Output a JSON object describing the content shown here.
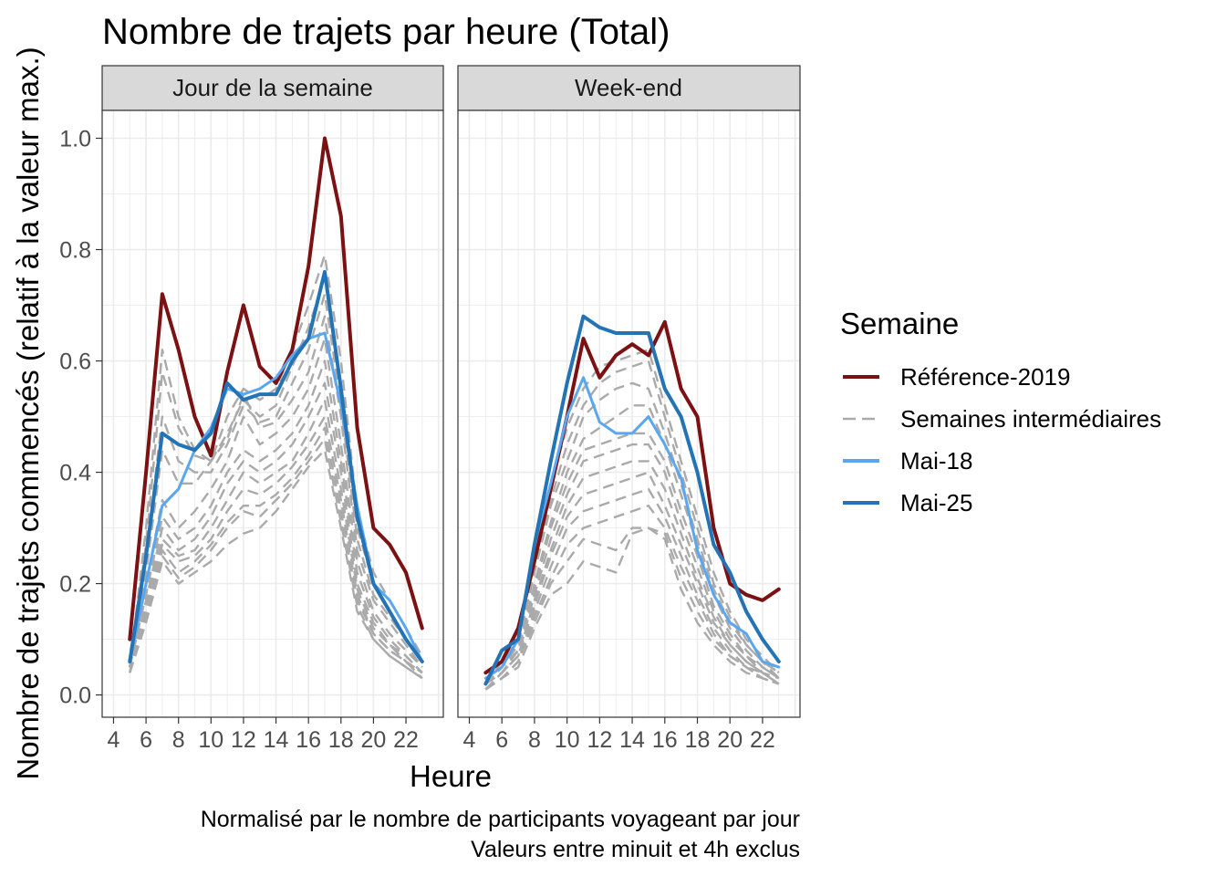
{
  "chart_data": {
    "type": "line",
    "title": "Nombre de trajets par heure (Total)",
    "xlabel": "Heure",
    "ylabel": "Nombre de trajets commencés (relatif à la valeur max.)",
    "caption_lines": [
      "Normalisé par le nombre de participants voyageant par jour",
      "Valeurs entre minuit et 4h exclus"
    ],
    "xlim": [
      3.3,
      24.3
    ],
    "ylim": [
      -0.04,
      1.05
    ],
    "x_ticks": [
      4,
      6,
      8,
      10,
      12,
      14,
      16,
      18,
      20,
      22
    ],
    "x_tick_labels": [
      "4",
      "6",
      "8",
      "10",
      "12",
      "14",
      "16",
      "18",
      "20",
      "22"
    ],
    "y_ticks": [
      0.0,
      0.2,
      0.4,
      0.6,
      0.8,
      1.0
    ],
    "y_tick_labels": [
      "0.0",
      "0.2",
      "0.4",
      "0.6",
      "0.8",
      "1.0"
    ],
    "grid": true,
    "legend": {
      "title": "Semaine",
      "position": "right",
      "entries": [
        {
          "label": "Référence-2019",
          "color": "#7b1113",
          "dash": "solid"
        },
        {
          "label": "Semaines intermédiaires",
          "color": "#aaaaaa",
          "dash": "dashed"
        },
        {
          "label": "Mai-18",
          "color": "#5aa7f0",
          "dash": "solid"
        },
        {
          "label": "Mai-25",
          "color": "#2474b5",
          "dash": "solid"
        }
      ]
    },
    "x": [
      5,
      6,
      7,
      8,
      9,
      10,
      11,
      12,
      13,
      14,
      15,
      16,
      17,
      18,
      19,
      20,
      21,
      22,
      23
    ],
    "panels": [
      {
        "label": "Jour de la semaine",
        "intermediate_series": [
          [
            0.05,
            0.3,
            0.62,
            0.5,
            0.44,
            0.42,
            0.5,
            0.55,
            0.53,
            0.55,
            0.62,
            0.7,
            0.79,
            0.6,
            0.33,
            0.22,
            0.17,
            0.12,
            0.07
          ],
          [
            0.06,
            0.27,
            0.58,
            0.48,
            0.43,
            0.42,
            0.47,
            0.53,
            0.5,
            0.52,
            0.59,
            0.66,
            0.75,
            0.56,
            0.3,
            0.2,
            0.15,
            0.1,
            0.06
          ],
          [
            0.05,
            0.25,
            0.5,
            0.42,
            0.4,
            0.4,
            0.45,
            0.52,
            0.49,
            0.5,
            0.56,
            0.62,
            0.72,
            0.52,
            0.28,
            0.18,
            0.14,
            0.1,
            0.06
          ],
          [
            0.05,
            0.22,
            0.44,
            0.38,
            0.38,
            0.42,
            0.46,
            0.54,
            0.48,
            0.49,
            0.53,
            0.58,
            0.68,
            0.5,
            0.26,
            0.17,
            0.13,
            0.09,
            0.05
          ],
          [
            0.04,
            0.2,
            0.35,
            0.3,
            0.33,
            0.37,
            0.42,
            0.5,
            0.45,
            0.47,
            0.5,
            0.55,
            0.64,
            0.45,
            0.24,
            0.15,
            0.11,
            0.08,
            0.05
          ],
          [
            0.05,
            0.18,
            0.32,
            0.28,
            0.3,
            0.34,
            0.4,
            0.44,
            0.42,
            0.44,
            0.47,
            0.52,
            0.6,
            0.42,
            0.22,
            0.14,
            0.1,
            0.07,
            0.04
          ],
          [
            0.04,
            0.17,
            0.3,
            0.26,
            0.28,
            0.32,
            0.38,
            0.42,
            0.4,
            0.42,
            0.45,
            0.5,
            0.56,
            0.4,
            0.2,
            0.13,
            0.09,
            0.07,
            0.04
          ],
          [
            0.04,
            0.16,
            0.28,
            0.25,
            0.26,
            0.3,
            0.35,
            0.4,
            0.38,
            0.4,
            0.42,
            0.47,
            0.53,
            0.37,
            0.19,
            0.12,
            0.09,
            0.06,
            0.04
          ],
          [
            0.04,
            0.15,
            0.27,
            0.24,
            0.25,
            0.28,
            0.33,
            0.37,
            0.36,
            0.38,
            0.41,
            0.45,
            0.5,
            0.35,
            0.18,
            0.11,
            0.08,
            0.06,
            0.04
          ],
          [
            0.04,
            0.14,
            0.26,
            0.22,
            0.24,
            0.27,
            0.31,
            0.34,
            0.34,
            0.36,
            0.39,
            0.43,
            0.48,
            0.33,
            0.17,
            0.11,
            0.08,
            0.06,
            0.03
          ],
          [
            0.04,
            0.14,
            0.25,
            0.21,
            0.23,
            0.26,
            0.3,
            0.33,
            0.32,
            0.35,
            0.38,
            0.42,
            0.46,
            0.31,
            0.16,
            0.1,
            0.07,
            0.05,
            0.03
          ],
          [
            0.04,
            0.13,
            0.24,
            0.2,
            0.22,
            0.24,
            0.27,
            0.29,
            0.3,
            0.33,
            0.37,
            0.41,
            0.44,
            0.3,
            0.15,
            0.1,
            0.07,
            0.05,
            0.03
          ]
        ],
        "series": [
          {
            "name": "Référence-2019",
            "values": [
              0.1,
              0.4,
              0.72,
              0.62,
              0.5,
              0.43,
              0.58,
              0.7,
              0.59,
              0.56,
              0.62,
              0.77,
              1.0,
              0.86,
              0.48,
              0.3,
              0.27,
              0.22,
              0.12
            ]
          },
          {
            "name": "Mai-18",
            "values": [
              0.06,
              0.2,
              0.34,
              0.37,
              0.44,
              0.48,
              0.55,
              0.54,
              0.55,
              0.57,
              0.61,
              0.64,
              0.65,
              0.52,
              0.34,
              0.2,
              0.17,
              0.12,
              0.06
            ]
          },
          {
            "name": "Mai-25",
            "values": [
              0.06,
              0.25,
              0.47,
              0.45,
              0.44,
              0.47,
              0.56,
              0.53,
              0.54,
              0.54,
              0.6,
              0.64,
              0.76,
              0.55,
              0.32,
              0.2,
              0.15,
              0.1,
              0.06
            ]
          }
        ]
      },
      {
        "label": "Week-end",
        "intermediate_series": [
          [
            0.02,
            0.06,
            0.1,
            0.25,
            0.38,
            0.48,
            0.55,
            0.59,
            0.6,
            0.61,
            0.62,
            0.52,
            0.42,
            0.32,
            0.22,
            0.15,
            0.1,
            0.07,
            0.04
          ],
          [
            0.02,
            0.05,
            0.09,
            0.23,
            0.35,
            0.45,
            0.52,
            0.56,
            0.58,
            0.59,
            0.6,
            0.5,
            0.4,
            0.3,
            0.2,
            0.14,
            0.09,
            0.06,
            0.04
          ],
          [
            0.02,
            0.05,
            0.09,
            0.22,
            0.34,
            0.42,
            0.5,
            0.53,
            0.55,
            0.56,
            0.55,
            0.47,
            0.38,
            0.28,
            0.19,
            0.13,
            0.09,
            0.06,
            0.03
          ],
          [
            0.02,
            0.05,
            0.08,
            0.2,
            0.31,
            0.4,
            0.46,
            0.48,
            0.5,
            0.52,
            0.52,
            0.45,
            0.36,
            0.27,
            0.18,
            0.12,
            0.08,
            0.05,
            0.03
          ],
          [
            0.02,
            0.04,
            0.08,
            0.19,
            0.3,
            0.38,
            0.44,
            0.45,
            0.46,
            0.47,
            0.47,
            0.42,
            0.33,
            0.25,
            0.16,
            0.11,
            0.07,
            0.05,
            0.03
          ],
          [
            0.02,
            0.04,
            0.07,
            0.18,
            0.28,
            0.36,
            0.42,
            0.43,
            0.44,
            0.45,
            0.45,
            0.4,
            0.31,
            0.23,
            0.15,
            0.1,
            0.07,
            0.04,
            0.03
          ],
          [
            0.01,
            0.04,
            0.07,
            0.17,
            0.26,
            0.34,
            0.39,
            0.4,
            0.41,
            0.42,
            0.42,
            0.37,
            0.29,
            0.21,
            0.14,
            0.09,
            0.06,
            0.04,
            0.02
          ],
          [
            0.01,
            0.04,
            0.07,
            0.16,
            0.25,
            0.32,
            0.36,
            0.37,
            0.38,
            0.39,
            0.4,
            0.34,
            0.27,
            0.2,
            0.13,
            0.09,
            0.06,
            0.04,
            0.02
          ],
          [
            0.01,
            0.03,
            0.06,
            0.15,
            0.23,
            0.3,
            0.33,
            0.34,
            0.35,
            0.36,
            0.37,
            0.32,
            0.25,
            0.18,
            0.12,
            0.08,
            0.05,
            0.04,
            0.02
          ],
          [
            0.01,
            0.03,
            0.06,
            0.14,
            0.21,
            0.27,
            0.3,
            0.31,
            0.32,
            0.33,
            0.34,
            0.3,
            0.23,
            0.17,
            0.11,
            0.07,
            0.05,
            0.03,
            0.02
          ],
          [
            0.01,
            0.03,
            0.06,
            0.13,
            0.2,
            0.24,
            0.28,
            0.27,
            0.26,
            0.3,
            0.3,
            0.29,
            0.21,
            0.15,
            0.1,
            0.07,
            0.05,
            0.03,
            0.02
          ],
          [
            0.01,
            0.03,
            0.05,
            0.12,
            0.18,
            0.2,
            0.24,
            0.23,
            0.22,
            0.29,
            0.3,
            0.28,
            0.19,
            0.13,
            0.09,
            0.06,
            0.04,
            0.03,
            0.02
          ]
        ],
        "series": [
          {
            "name": "Référence-2019",
            "values": [
              0.04,
              0.06,
              0.12,
              0.24,
              0.37,
              0.5,
              0.64,
              0.57,
              0.61,
              0.63,
              0.61,
              0.67,
              0.55,
              0.5,
              0.3,
              0.2,
              0.18,
              0.17,
              0.19
            ]
          },
          {
            "name": "Mai-18",
            "values": [
              0.03,
              0.05,
              0.1,
              0.27,
              0.38,
              0.5,
              0.57,
              0.49,
              0.47,
              0.47,
              0.5,
              0.45,
              0.39,
              0.26,
              0.18,
              0.13,
              0.11,
              0.06,
              0.05
            ]
          },
          {
            "name": "Mai-25",
            "values": [
              0.02,
              0.08,
              0.1,
              0.27,
              0.42,
              0.56,
              0.68,
              0.66,
              0.65,
              0.65,
              0.65,
              0.55,
              0.5,
              0.4,
              0.27,
              0.22,
              0.15,
              0.1,
              0.06
            ]
          }
        ]
      }
    ]
  }
}
